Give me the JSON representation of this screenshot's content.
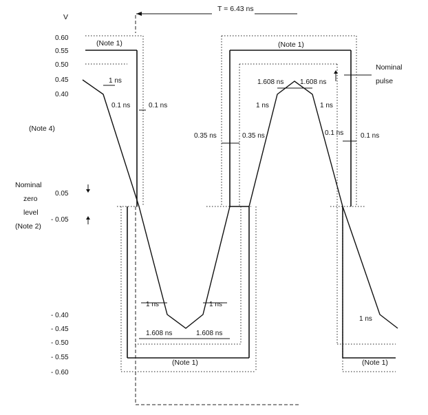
{
  "diagram": {
    "period_label": "T = 6.43 ns",
    "y_unit": "V",
    "y_ticks": [
      "0.60",
      "0.55",
      "0.50",
      "0.45",
      "0.40",
      "0.05",
      "- 0.05",
      "- 0.40",
      "- 0.45",
      "- 0.50",
      "- 0.55",
      "- 0.60"
    ],
    "note1_labels": [
      "(Note 1)",
      "(Note 1)",
      "(Note 1)",
      "(Note 1)"
    ],
    "note4_label": "(Note 4)",
    "nominal_zero_lines": [
      "Nominal",
      "zero",
      "level",
      "(Note 2)"
    ],
    "nominal_pulse_lines": [
      "Nominal",
      "pulse"
    ],
    "t_1ns": "1 ns",
    "t_01ns": "0.1 ns",
    "t_035ns": "0.35 ns",
    "t_1608ns": "1.608 ns"
  }
}
